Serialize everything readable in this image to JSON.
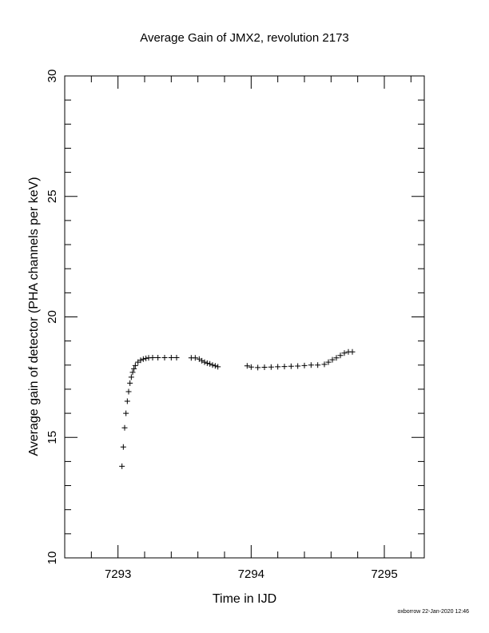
{
  "chart_data": {
    "type": "scatter",
    "title": "Average Gain of JMX2, revolution 2173",
    "xlabel": "Time in IJD",
    "ylabel": "Average gain of detector (PHA channels per keV)",
    "xlim": [
      7292.6,
      7295.3
    ],
    "ylim": [
      10,
      30
    ],
    "x_ticks": [
      7293,
      7294,
      7295
    ],
    "y_ticks": [
      10,
      15,
      20,
      25,
      30
    ],
    "marker": "plus",
    "grid": false,
    "series": [
      {
        "x": [
          7293.03,
          7293.04,
          7293.05,
          7293.06,
          7293.07,
          7293.08,
          7293.09,
          7293.1,
          7293.11,
          7293.12,
          7293.13,
          7293.15,
          7293.17,
          7293.19,
          7293.21,
          7293.23,
          7293.26,
          7293.3,
          7293.35,
          7293.4,
          7293.44,
          7293.55,
          7293.58,
          7293.61,
          7293.63,
          7293.65,
          7293.67,
          7293.69,
          7293.71,
          7293.73,
          7293.75,
          7293.97,
          7294.0,
          7294.05,
          7294.1,
          7294.15,
          7294.2,
          7294.25,
          7294.3,
          7294.35,
          7294.4,
          7294.45,
          7294.5,
          7294.55,
          7294.58,
          7294.61,
          7294.64,
          7294.67,
          7294.7,
          7294.73,
          7294.76
        ],
        "y": [
          13.8,
          14.6,
          15.4,
          16.0,
          16.5,
          16.9,
          17.25,
          17.5,
          17.7,
          17.85,
          17.98,
          18.12,
          18.2,
          18.25,
          18.28,
          18.3,
          18.31,
          18.31,
          18.31,
          18.31,
          18.31,
          18.3,
          18.3,
          18.25,
          18.18,
          18.12,
          18.08,
          18.05,
          18.0,
          17.97,
          17.93,
          17.97,
          17.92,
          17.9,
          17.91,
          17.92,
          17.93,
          17.94,
          17.95,
          17.96,
          17.98,
          18.0,
          18.0,
          18.03,
          18.12,
          18.22,
          18.3,
          18.4,
          18.5,
          18.55,
          18.55
        ]
      }
    ]
  },
  "footer": "oxborrow 22-Jan-2020 12:46"
}
